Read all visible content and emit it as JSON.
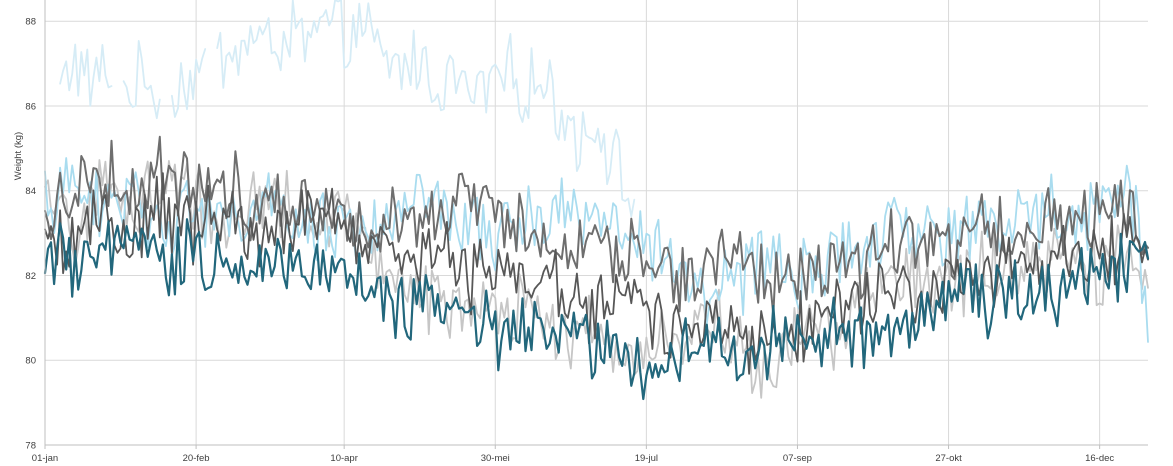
{
  "chart_data": {
    "type": "line",
    "title": "",
    "xlabel": "",
    "ylabel": "Weight (kg)",
    "ylim": [
      78,
      88.5
    ],
    "y_ticks": [
      "78",
      "80",
      "82",
      "84",
      "86",
      "88"
    ],
    "x_ticks": [
      {
        "label": "01-jan",
        "day": 1
      },
      {
        "label": "20-feb",
        "day": 51
      },
      {
        "label": "10-apr",
        "day": 100
      },
      {
        "label": "30-mei",
        "day": 150
      },
      {
        "label": "19-jul",
        "day": 200
      },
      {
        "label": "07-sep",
        "day": 250
      },
      {
        "label": "27-okt",
        "day": 300
      },
      {
        "label": "16-dec",
        "day": 350
      }
    ],
    "x_range_days": [
      1,
      366
    ],
    "grid": true,
    "legend": "none",
    "series": [
      {
        "color": "#d6ecf6",
        "width": 1.8,
        "points": [
          [
            6,
            86.4
          ],
          [
            10,
            87.1
          ],
          [
            16,
            86.5
          ],
          [
            22,
            86.9
          ],
          [
            28,
            86.3
          ],
          [
            34,
            86.7
          ],
          [
            40,
            86.1
          ],
          [
            46,
            86.5
          ],
          [
            52,
            86.8
          ],
          [
            58,
            87.1
          ],
          [
            64,
            87.3
          ],
          [
            70,
            87.6
          ],
          [
            76,
            87.4
          ],
          [
            82,
            87.7
          ],
          [
            88,
            87.5
          ],
          [
            94,
            87.9
          ],
          [
            100,
            87.6
          ],
          [
            106,
            87.9
          ],
          [
            112,
            87.1
          ],
          [
            118,
            86.9
          ],
          [
            124,
            87.1
          ],
          [
            130,
            86.5
          ],
          [
            136,
            86.7
          ],
          [
            142,
            86.2
          ],
          [
            148,
            86.5
          ],
          [
            154,
            86.8
          ],
          [
            160,
            86.4
          ],
          [
            166,
            86.6
          ],
          [
            172,
            85.8
          ],
          [
            178,
            85.3
          ],
          [
            184,
            85.6
          ],
          [
            190,
            84.6
          ],
          [
            196,
            83.5
          ]
        ],
        "gaps": [
          [
            24,
            26
          ],
          [
            40,
            42
          ],
          [
            55,
            57
          ]
        ]
      },
      {
        "color": "#c6c6c6",
        "width": 1.8,
        "points": [
          [
            1,
            83.7
          ],
          [
            10,
            83.0
          ],
          [
            20,
            84.1
          ],
          [
            30,
            83.5
          ],
          [
            40,
            84.3
          ],
          [
            50,
            83.9
          ],
          [
            60,
            83.1
          ],
          [
            70,
            84.0
          ],
          [
            80,
            83.6
          ],
          [
            90,
            83.0
          ],
          [
            100,
            83.4
          ],
          [
            110,
            82.5
          ],
          [
            120,
            81.8
          ],
          [
            130,
            81.5
          ],
          [
            140,
            81.2
          ],
          [
            150,
            80.9
          ],
          [
            160,
            81.3
          ],
          [
            170,
            80.6
          ],
          [
            180,
            80.9
          ],
          [
            190,
            79.9
          ],
          [
            200,
            80.4
          ],
          [
            210,
            80.6
          ],
          [
            220,
            81.0
          ],
          [
            230,
            80.4
          ],
          [
            240,
            79.3
          ],
          [
            250,
            80.9
          ],
          [
            260,
            80.5
          ],
          [
            270,
            81.4
          ],
          [
            280,
            81.8
          ],
          [
            290,
            82.1
          ],
          [
            300,
            81.6
          ],
          [
            310,
            82.3
          ],
          [
            320,
            81.9
          ],
          [
            330,
            82.2
          ],
          [
            340,
            82.5
          ],
          [
            350,
            82.1
          ],
          [
            360,
            82.4
          ],
          [
            366,
            82.0
          ]
        ]
      },
      {
        "color": "#a9dcef",
        "width": 1.8,
        "points": [
          [
            1,
            83.8
          ],
          [
            10,
            84.0
          ],
          [
            20,
            83.6
          ],
          [
            30,
            83.9
          ],
          [
            40,
            83.3
          ],
          [
            50,
            83.6
          ],
          [
            60,
            83.2
          ],
          [
            70,
            83.7
          ],
          [
            80,
            83.4
          ],
          [
            90,
            83.1
          ],
          [
            100,
            83.3
          ],
          [
            110,
            83.0
          ],
          [
            120,
            83.4
          ],
          [
            130,
            83.7
          ],
          [
            140,
            83.2
          ],
          [
            150,
            82.9
          ],
          [
            160,
            83.3
          ],
          [
            170,
            83.5
          ],
          [
            180,
            83.6
          ],
          [
            190,
            83.1
          ],
          [
            200,
            82.7
          ],
          [
            212,
            82.0
          ],
          [
            222,
            81.7
          ],
          [
            232,
            82.0
          ],
          [
            242,
            82.4
          ],
          [
            252,
            82.0
          ],
          [
            262,
            82.3
          ],
          [
            272,
            82.7
          ],
          [
            282,
            83.0
          ],
          [
            292,
            83.2
          ],
          [
            302,
            82.9
          ],
          [
            312,
            83.4
          ],
          [
            322,
            83.1
          ],
          [
            332,
            83.6
          ],
          [
            342,
            83.3
          ],
          [
            352,
            83.9
          ],
          [
            362,
            83.7
          ],
          [
            366,
            80.7
          ]
        ]
      },
      {
        "color": "#6e6e6e",
        "width": 2.0,
        "points": [
          [
            1,
            83.2
          ],
          [
            10,
            84.1
          ],
          [
            20,
            84.5
          ],
          [
            30,
            83.9
          ],
          [
            40,
            84.6
          ],
          [
            50,
            83.9
          ],
          [
            60,
            84.3
          ],
          [
            70,
            83.6
          ],
          [
            80,
            84.0
          ],
          [
            90,
            83.5
          ],
          [
            100,
            83.8
          ],
          [
            110,
            83.1
          ],
          [
            120,
            83.6
          ],
          [
            130,
            83.2
          ],
          [
            140,
            83.9
          ],
          [
            150,
            83.4
          ],
          [
            160,
            83.0
          ],
          [
            170,
            82.6
          ],
          [
            180,
            82.9
          ],
          [
            190,
            82.4
          ],
          [
            200,
            82.7
          ],
          [
            212,
            81.8
          ],
          [
            222,
            82.3
          ],
          [
            232,
            82.6
          ],
          [
            242,
            81.8
          ],
          [
            252,
            82.0
          ],
          [
            262,
            82.5
          ],
          [
            272,
            82.2
          ],
          [
            282,
            82.8
          ],
          [
            292,
            83.0
          ],
          [
            302,
            82.6
          ],
          [
            312,
            83.2
          ],
          [
            322,
            82.8
          ],
          [
            332,
            83.5
          ],
          [
            342,
            83.1
          ],
          [
            352,
            83.9
          ],
          [
            362,
            83.4
          ],
          [
            366,
            82.9
          ]
        ]
      },
      {
        "color": "#575757",
        "width": 1.8,
        "points": [
          [
            1,
            82.5
          ],
          [
            10,
            82.9
          ],
          [
            20,
            83.3
          ],
          [
            30,
            82.9
          ],
          [
            40,
            83.6
          ],
          [
            50,
            83.0
          ],
          [
            60,
            83.5
          ],
          [
            70,
            82.9
          ],
          [
            80,
            83.3
          ],
          [
            90,
            83.6
          ],
          [
            100,
            83.0
          ],
          [
            110,
            82.6
          ],
          [
            120,
            82.3
          ],
          [
            130,
            82.7
          ],
          [
            140,
            82.1
          ],
          [
            150,
            81.8
          ],
          [
            160,
            82.2
          ],
          [
            170,
            81.7
          ],
          [
            180,
            81.2
          ],
          [
            190,
            81.5
          ],
          [
            200,
            81.0
          ],
          [
            212,
            80.6
          ],
          [
            222,
            81.1
          ],
          [
            232,
            80.5
          ],
          [
            242,
            80.9
          ],
          [
            252,
            80.8
          ],
          [
            262,
            81.2
          ],
          [
            272,
            81.6
          ],
          [
            282,
            81.9
          ],
          [
            292,
            81.5
          ],
          [
            302,
            82.0
          ],
          [
            312,
            81.7
          ],
          [
            322,
            82.3
          ],
          [
            332,
            82.0
          ],
          [
            342,
            82.7
          ],
          [
            352,
            82.4
          ],
          [
            362,
            82.9
          ],
          [
            366,
            82.6
          ]
        ]
      },
      {
        "color": "#22677c",
        "width": 2.2,
        "points": [
          [
            1,
            82.6
          ],
          [
            10,
            82.1
          ],
          [
            20,
            82.4
          ],
          [
            30,
            82.8
          ],
          [
            40,
            82.3
          ],
          [
            50,
            82.6
          ],
          [
            60,
            82.2
          ],
          [
            70,
            82.5
          ],
          [
            80,
            82.0
          ],
          [
            90,
            82.4
          ],
          [
            100,
            82.2
          ],
          [
            110,
            81.6
          ],
          [
            120,
            81.2
          ],
          [
            130,
            81.5
          ],
          [
            140,
            80.9
          ],
          [
            150,
            80.6
          ],
          [
            160,
            81.0
          ],
          [
            170,
            80.7
          ],
          [
            180,
            80.4
          ],
          [
            190,
            80.1
          ],
          [
            200,
            79.9
          ],
          [
            212,
            80.1
          ],
          [
            222,
            80.6
          ],
          [
            232,
            80.0
          ],
          [
            242,
            80.5
          ],
          [
            252,
            80.2
          ],
          [
            262,
            80.7
          ],
          [
            272,
            80.3
          ],
          [
            282,
            80.9
          ],
          [
            292,
            81.3
          ],
          [
            302,
            81.6
          ],
          [
            312,
            81.2
          ],
          [
            322,
            81.8
          ],
          [
            332,
            81.5
          ],
          [
            342,
            82.1
          ],
          [
            352,
            82.4
          ],
          [
            362,
            82.1
          ],
          [
            366,
            82.0
          ]
        ]
      }
    ]
  }
}
